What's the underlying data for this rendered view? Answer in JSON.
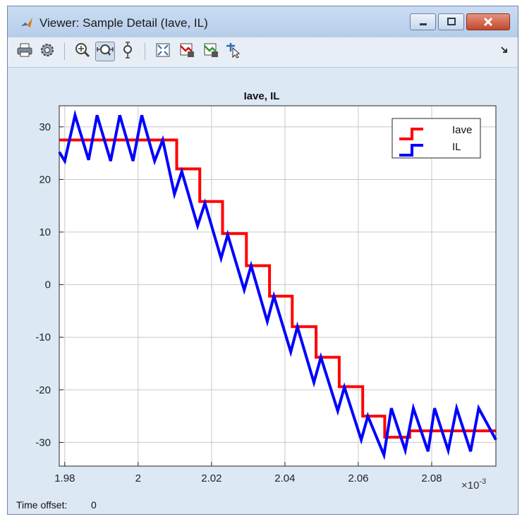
{
  "window": {
    "title": "Viewer: Sample Detail (Iave, IL)"
  },
  "toolbar": {
    "buttons": [
      {
        "name": "print-icon"
      },
      {
        "name": "settings-icon"
      },
      {
        "name": "zoom-in-icon"
      },
      {
        "name": "zoom-x-icon"
      },
      {
        "name": "zoom-y-icon"
      },
      {
        "name": "fit-to-view-icon"
      },
      {
        "name": "signal-select-icon"
      },
      {
        "name": "signal-highlight-icon"
      },
      {
        "name": "cursor-select-icon"
      }
    ]
  },
  "status": {
    "time_offset_label": "Time offset:",
    "time_offset_value": "0"
  },
  "colors": {
    "iave": "#ff0000",
    "il": "#0000ff",
    "axes_bg": "#ffffff",
    "window_bg": "#dde8f5"
  },
  "chart_data": {
    "type": "line",
    "title": "Iave, IL",
    "xlabel": "",
    "ylabel": "",
    "x_exponent_label": "×10",
    "x_exponent_power": "-3",
    "xlim": [
      1.9785,
      2.0975
    ],
    "ylim": [
      -34.5,
      34
    ],
    "grid": true,
    "legend": "top-right",
    "x_ticks": [
      {
        "v": 1.98,
        "label": "1.98"
      },
      {
        "v": 2.0,
        "label": "2"
      },
      {
        "v": 2.02,
        "label": "2.02"
      },
      {
        "v": 2.04,
        "label": "2.04"
      },
      {
        "v": 2.06,
        "label": "2.06"
      },
      {
        "v": 2.08,
        "label": "2.08"
      }
    ],
    "y_ticks": [
      {
        "v": 30,
        "label": "30"
      },
      {
        "v": 20,
        "label": "20"
      },
      {
        "v": 10,
        "label": "10"
      },
      {
        "v": 0,
        "label": "0"
      },
      {
        "v": -10,
        "label": "-10"
      },
      {
        "v": -20,
        "label": "-20"
      },
      {
        "v": -30,
        "label": "-30"
      }
    ],
    "series": [
      {
        "name": "Iave",
        "step": true,
        "x": [
          1.9785,
          2.0105,
          2.0168,
          2.023,
          2.0295,
          2.0358,
          2.042,
          2.0485,
          2.0548,
          2.0612,
          2.0672,
          2.074,
          2.0975
        ],
        "y": [
          27.5,
          22.0,
          15.8,
          9.7,
          3.6,
          -2.2,
          -8.0,
          -13.8,
          -19.4,
          -25.0,
          -29.0,
          -27.8,
          -27.8
        ]
      },
      {
        "name": "IL",
        "step": false,
        "x": [
          1.9785,
          1.98,
          1.9828,
          1.9865,
          1.9888,
          1.9925,
          1.995,
          1.9986,
          2.001,
          2.0045,
          2.0067,
          2.0099,
          2.0119,
          2.0162,
          2.0182,
          2.0226,
          2.0244,
          2.0289,
          2.0308,
          2.0352,
          2.037,
          2.0416,
          2.0434,
          2.0479,
          2.0498,
          2.0544,
          2.0562,
          2.0608,
          2.0626,
          2.067,
          2.069,
          2.0728,
          2.075,
          2.079,
          2.0808,
          2.0845,
          2.0868,
          2.0906,
          2.0928,
          2.0975
        ],
        "y": [
          25.2,
          23.5,
          32.2,
          23.7,
          32.2,
          23.5,
          32.2,
          23.5,
          32.2,
          23.5,
          27.5,
          17.2,
          21.5,
          11.2,
          15.5,
          5.0,
          9.5,
          -1.0,
          3.6,
          -7.0,
          -2.2,
          -12.8,
          -8.0,
          -18.6,
          -13.8,
          -24.0,
          -19.5,
          -29.5,
          -25.0,
          -32.4,
          -23.5,
          -31.5,
          -23.5,
          -31.7,
          -23.5,
          -31.5,
          -23.5,
          -31.7,
          -23.5,
          -29.5
        ]
      }
    ]
  }
}
